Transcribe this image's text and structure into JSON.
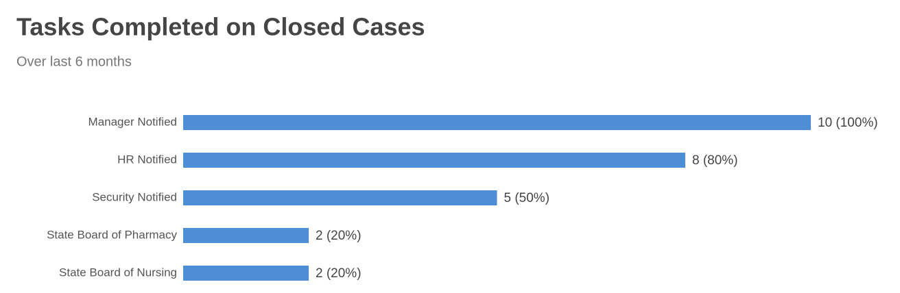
{
  "chart_data": {
    "type": "hbar",
    "title": "Tasks Completed on Closed Cases",
    "subtitle": "Over last 6 months",
    "categories": [
      "Manager Notified",
      "HR Notified",
      "Security Notified",
      "State Board of Pharmacy",
      "State Board of Nursing"
    ],
    "values": [
      10,
      8,
      5,
      2,
      2
    ],
    "value_labels": [
      "10 (100%)",
      "8 (80%)",
      "5 (50%)",
      "2 (20%)",
      "2 (20%)"
    ],
    "color": "#4e8ed6"
  }
}
